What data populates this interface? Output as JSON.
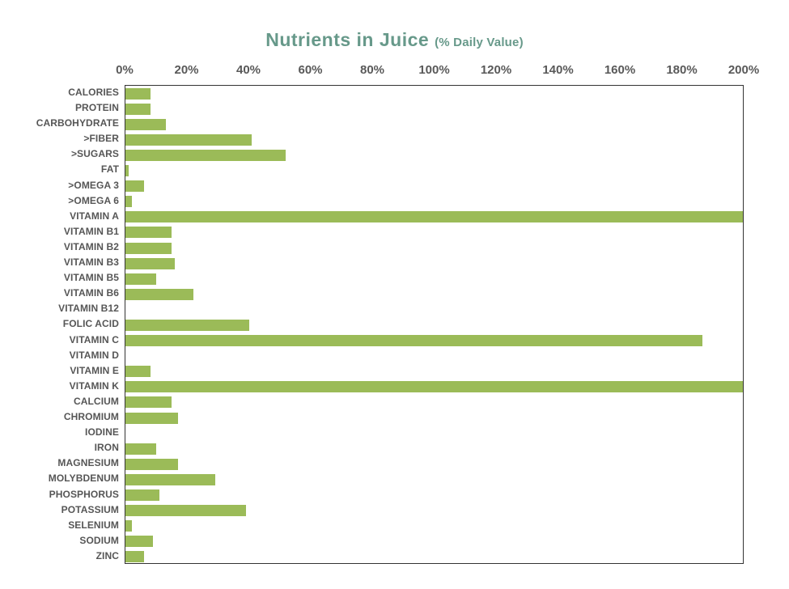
{
  "title": {
    "main": "Nutrients in Juice",
    "sub": "(% Daily Value)"
  },
  "colors": {
    "bar": "#9bbb58",
    "title_text": "#67998a",
    "axis_tick_text": "#595959",
    "category_text": "#565656",
    "plot_border": "#333333"
  },
  "chart_data": {
    "type": "bar",
    "orientation": "horizontal",
    "title": "Nutrients in Juice (% Daily Value)",
    "xlabel": "",
    "ylabel": "",
    "xlim": [
      0,
      200
    ],
    "grid": false,
    "legend": false,
    "unit": "%",
    "x_ticks": [
      "0%",
      "20%",
      "40%",
      "60%",
      "80%",
      "100%",
      "120%",
      "140%",
      "160%",
      "180%",
      "200%"
    ],
    "categories": [
      "CALORIES",
      "PROTEIN",
      "CARBOHYDRATE",
      ">FIBER",
      ">SUGARS",
      "FAT",
      ">OMEGA 3",
      ">OMEGA 6",
      "VITAMIN A",
      "VITAMIN B1",
      "VITAMIN B2",
      "VITAMIN B3",
      "VITAMIN B5",
      "VITAMIN B6",
      "VITAMIN B12",
      "FOLIC ACID",
      "VITAMIN C",
      "VITAMIN D",
      "VITAMIN E",
      "VITAMIN K",
      "CALCIUM",
      "CHROMIUM",
      "IODINE",
      "IRON",
      "MAGNESIUM",
      "MOLYBDENUM",
      "PHOSPHORUS",
      "POTASSIUM",
      "SELENIUM",
      "SODIUM",
      "ZINC"
    ],
    "values": [
      8,
      8,
      13,
      41,
      52,
      1,
      6,
      2,
      200,
      15,
      15,
      16,
      10,
      22,
      0,
      40,
      187,
      0,
      8,
      200,
      15,
      17,
      0,
      10,
      17,
      29,
      11,
      39,
      2,
      9,
      6
    ]
  }
}
